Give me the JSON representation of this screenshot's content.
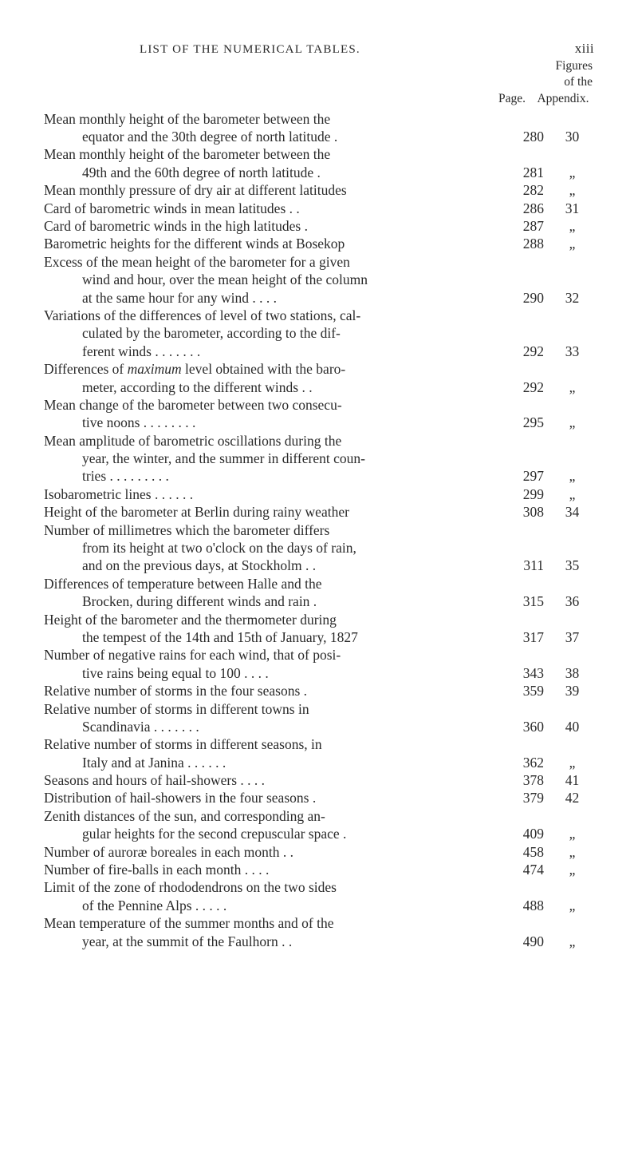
{
  "running_title": "LIST OF THE NUMERICAL TABLES.",
  "page_number": "xiii",
  "sub_header_line1": "Figures",
  "sub_header_line2": "of the",
  "col_page_label": "Page.",
  "col_app_label": "Appendix.",
  "ditto": "„",
  "entries": [
    {
      "lines": [
        "Mean monthly height of the barometer between the",
        "equator and the 30th degree of north latitude  ."
      ],
      "page": "280",
      "app": "30"
    },
    {
      "lines": [
        "Mean monthly height of the barometer between the",
        "49th and the 60th degree of north latitude  ."
      ],
      "page": "281",
      "app": "„"
    },
    {
      "lines": [
        "Mean monthly pressure of dry air at different latitudes"
      ],
      "page": "282",
      "app": "„"
    },
    {
      "lines": [
        "Card of barometric winds in mean latitudes  .  ."
      ],
      "page": "286",
      "app": "31"
    },
    {
      "lines": [
        "Card of barometric winds in the high latitudes  ."
      ],
      "page": "287",
      "app": "„"
    },
    {
      "lines": [
        "Barometric heights for the different winds at Bosekop"
      ],
      "page": "288",
      "app": "„"
    },
    {
      "lines": [
        "Excess of the mean height of the barometer for a given",
        "wind and hour, over the mean height of the column",
        "at the same hour for any wind .  .  .  ."
      ],
      "page": "290",
      "app": "32"
    },
    {
      "lines": [
        "Variations of the differences of level of two stations, cal-",
        "culated by the barometer, according to the dif-",
        "ferent winds  .  .  .  .  .  .  ."
      ],
      "page": "292",
      "app": "33"
    },
    {
      "lines": [
        "Differences of <i>maximum</i> level obtained with the baro-",
        "meter, according to the different winds  .  ."
      ],
      "page": "292",
      "app": "„"
    },
    {
      "lines": [
        "Mean change of the barometer between two consecu-",
        "tive noons .  .  .  .  .  .  .  ."
      ],
      "page": "295",
      "app": "„"
    },
    {
      "lines": [
        "Mean amplitude of barometric oscillations during the",
        "year, the winter, and the summer in different coun-",
        "tries .  .  .  .  .  .  .  .  ."
      ],
      "page": "297",
      "app": "„"
    },
    {
      "lines": [
        "Isobarometric lines  .  .  .  .  .  ."
      ],
      "page": "299",
      "app": "„"
    },
    {
      "lines": [
        "Height of the barometer at Berlin during rainy weather"
      ],
      "page": "308",
      "app": "34"
    },
    {
      "lines": [
        "Number of millimetres which the barometer differs",
        "from its height at two o'clock on the days of rain,",
        "and on the previous days, at Stockholm  .  ."
      ],
      "page": "311",
      "app": "35"
    },
    {
      "lines": [
        "Differences of temperature between Halle and the",
        "Brocken, during different winds and rain  ."
      ],
      "page": "315",
      "app": "36"
    },
    {
      "lines": [
        "Height of the barometer and the thermometer during",
        "the tempest of the 14th and 15th of January, 1827"
      ],
      "page": "317",
      "app": "37"
    },
    {
      "lines": [
        "Number of negative rains for each wind, that of posi-",
        "tive rains being equal to 100  .  .  .  ."
      ],
      "page": "343",
      "app": "38"
    },
    {
      "lines": [
        "Relative number of storms in the four seasons  ."
      ],
      "page": "359",
      "app": "39"
    },
    {
      "lines": [
        "Relative number of storms in different towns in",
        "Scandinavia  .  .  .  .  .  .  ."
      ],
      "page": "360",
      "app": "40"
    },
    {
      "lines": [
        "Relative number of storms in different seasons, in",
        "Italy and at Janina .  .  .  .  .  ."
      ],
      "page": "362",
      "app": "„"
    },
    {
      "lines": [
        "Seasons and hours of hail-showers  .  .  .  ."
      ],
      "page": "378",
      "app": "41"
    },
    {
      "lines": [
        "Distribution of hail-showers in the four seasons  ."
      ],
      "page": "379",
      "app": "42"
    },
    {
      "lines": [
        "Zenith distances of the sun, and corresponding an-",
        "gular heights for the second crepuscular space  ."
      ],
      "page": "409",
      "app": "„"
    },
    {
      "lines": [
        "Number of auroræ boreales in each month  .  ."
      ],
      "page": "458",
      "app": "„"
    },
    {
      "lines": [
        "Number of fire-balls in each month  .  .  .  ."
      ],
      "page": "474",
      "app": "„"
    },
    {
      "lines": [
        "Limit of the zone of rhododendrons on the two sides",
        "of the Pennine Alps  .  .  .  .  ."
      ],
      "page": "488",
      "app": "„"
    },
    {
      "lines": [
        "Mean temperature of the summer months and of the",
        "year, at the summit of the Faulhorn  .  ."
      ],
      "page": "490",
      "app": "„"
    }
  ]
}
